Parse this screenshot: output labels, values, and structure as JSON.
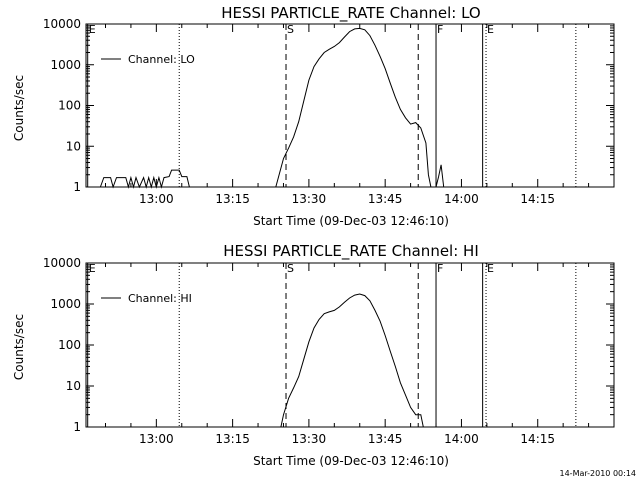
{
  "timestamp": "14-Mar-2010 00:14",
  "chart_data": [
    {
      "type": "line",
      "title": "HESSI PARTICLE_RATE Channel: LO",
      "xlabel": "Start Time (09-Dec-03 12:46:10)",
      "ylabel": "Counts/sec",
      "y_scale": "log",
      "xlim": [
        "12:46:10",
        "14:30:00"
      ],
      "ylim": [
        1,
        10000
      ],
      "x_ticks": [
        "13:00",
        "13:15",
        "13:30",
        "13:45",
        "14:00",
        "14:15"
      ],
      "y_ticks": [
        "1",
        "10",
        "100",
        "1000",
        "10000"
      ],
      "legend": {
        "position": "top-left",
        "entries": [
          "Channel: LO"
        ]
      },
      "markers": [
        {
          "label": "E",
          "time": "12:46:30",
          "style": "solid"
        },
        {
          "label": "",
          "time": "13:04:30",
          "style": "dotted"
        },
        {
          "label": "S",
          "time": "13:25:30",
          "style": "dashed"
        },
        {
          "label": "",
          "time": "13:51:30",
          "style": "dashed"
        },
        {
          "label": "F",
          "time": "13:55:00",
          "style": "solid"
        },
        {
          "label": "",
          "time": "14:04:10",
          "style": "solid"
        },
        {
          "label": "E",
          "time": "14:04:50",
          "style": "dotted"
        },
        {
          "label": "",
          "time": "14:22:30",
          "style": "dotted"
        }
      ],
      "series": [
        {
          "name": "Channel: LO",
          "points": [
            [
              "12:49:00",
              1
            ],
            [
              "12:49:40",
              1.7
            ],
            [
              "12:51:00",
              1.7
            ],
            [
              "12:51:30",
              1
            ],
            [
              "12:52:10",
              1.7
            ],
            [
              "12:54:00",
              1.7
            ],
            [
              "12:54:30",
              1
            ],
            [
              "12:55:00",
              1.7
            ],
            [
              "12:55:30",
              1
            ],
            [
              "12:56:00",
              1.7
            ],
            [
              "12:56:40",
              1
            ],
            [
              "12:57:30",
              1.7
            ],
            [
              "12:58:00",
              1
            ],
            [
              "12:58:30",
              1.7
            ],
            [
              "12:59:00",
              1
            ],
            [
              "12:59:30",
              1.7
            ],
            [
              "13:00:00",
              1
            ],
            [
              "13:00:30",
              1.7
            ],
            [
              "13:01:00",
              1
            ],
            [
              "13:01:30",
              1.7
            ],
            [
              "13:02:30",
              1.8
            ],
            [
              "13:03:00",
              2.6
            ],
            [
              "13:04:30",
              2.6
            ],
            [
              "13:05:00",
              1.8
            ],
            [
              "13:06:00",
              1.8
            ],
            [
              "13:06:30",
              1
            ]
          ]
        },
        {
          "name": "Channel: LO",
          "points": [
            [
              "13:23:30",
              1
            ],
            [
              "13:25:00",
              5
            ],
            [
              "13:26:00",
              9
            ],
            [
              "13:27:00",
              17
            ],
            [
              "13:28:00",
              40
            ],
            [
              "13:29:00",
              130
            ],
            [
              "13:30:00",
              420
            ],
            [
              "13:31:00",
              900
            ],
            [
              "13:32:00",
              1400
            ],
            [
              "13:33:00",
              2000
            ],
            [
              "13:34:00",
              2400
            ],
            [
              "13:35:00",
              2800
            ],
            [
              "13:36:00",
              3500
            ],
            [
              "13:37:00",
              4800
            ],
            [
              "13:38:00",
              6500
            ],
            [
              "13:39:00",
              7600
            ],
            [
              "13:40:00",
              7800
            ],
            [
              "13:41:00",
              7200
            ],
            [
              "13:42:00",
              5200
            ],
            [
              "13:43:00",
              3000
            ],
            [
              "13:44:00",
              1600
            ],
            [
              "13:45:00",
              800
            ],
            [
              "13:46:00",
              350
            ],
            [
              "13:47:00",
              160
            ],
            [
              "13:48:00",
              80
            ],
            [
              "13:49:00",
              50
            ],
            [
              "13:50:00",
              35
            ],
            [
              "13:51:00",
              38
            ],
            [
              "13:52:00",
              28
            ],
            [
              "13:53:00",
              12
            ],
            [
              "13:53:30",
              2
            ],
            [
              "13:54:00",
              1
            ]
          ]
        },
        {
          "name": "Channel: LO",
          "points": [
            [
              "13:55:00",
              1
            ],
            [
              "13:55:30",
              1.8
            ],
            [
              "13:56:00",
              3.5
            ],
            [
              "13:56:30",
              1
            ]
          ]
        }
      ]
    },
    {
      "type": "line",
      "title": "HESSI PARTICLE_RATE Channel: HI",
      "xlabel": "Start Time (09-Dec-03 12:46:10)",
      "ylabel": "Counts/sec",
      "y_scale": "log",
      "xlim": [
        "12:46:10",
        "14:30:00"
      ],
      "ylim": [
        1,
        10000
      ],
      "x_ticks": [
        "13:00",
        "13:15",
        "13:30",
        "13:45",
        "14:00",
        "14:15"
      ],
      "y_ticks": [
        "1",
        "10",
        "100",
        "1000",
        "10000"
      ],
      "legend": {
        "position": "top-left",
        "entries": [
          "Channel: HI"
        ]
      },
      "markers": [
        {
          "label": "E",
          "time": "12:46:30",
          "style": "solid"
        },
        {
          "label": "",
          "time": "13:04:30",
          "style": "dotted"
        },
        {
          "label": "S",
          "time": "13:25:30",
          "style": "dashed"
        },
        {
          "label": "",
          "time": "13:51:30",
          "style": "dashed"
        },
        {
          "label": "F",
          "time": "13:55:00",
          "style": "solid"
        },
        {
          "label": "",
          "time": "14:04:10",
          "style": "solid"
        },
        {
          "label": "E",
          "time": "14:04:50",
          "style": "dotted"
        },
        {
          "label": "",
          "time": "14:22:30",
          "style": "dotted"
        }
      ],
      "series": [
        {
          "name": "Channel: HI",
          "points": [
            [
              "13:24:30",
              1
            ],
            [
              "13:25:00",
              2
            ],
            [
              "13:26:00",
              5
            ],
            [
              "13:27:00",
              9
            ],
            [
              "13:28:00",
              17
            ],
            [
              "13:29:00",
              45
            ],
            [
              "13:30:00",
              120
            ],
            [
              "13:31:00",
              260
            ],
            [
              "13:32:00",
              420
            ],
            [
              "13:33:00",
              580
            ],
            [
              "13:34:00",
              640
            ],
            [
              "13:35:00",
              700
            ],
            [
              "13:36:00",
              850
            ],
            [
              "13:37:00",
              1100
            ],
            [
              "13:38:00",
              1400
            ],
            [
              "13:39:00",
              1650
            ],
            [
              "13:40:00",
              1750
            ],
            [
              "13:41:00",
              1600
            ],
            [
              "13:42:00",
              1200
            ],
            [
              "13:43:00",
              700
            ],
            [
              "13:44:00",
              380
            ],
            [
              "13:45:00",
              170
            ],
            [
              "13:46:00",
              70
            ],
            [
              "13:47:00",
              30
            ],
            [
              "13:48:00",
              12
            ],
            [
              "13:49:00",
              6
            ],
            [
              "13:50:00",
              3
            ],
            [
              "13:51:00",
              2
            ],
            [
              "13:52:00",
              2
            ],
            [
              "13:52:30",
              1
            ]
          ]
        }
      ]
    }
  ]
}
